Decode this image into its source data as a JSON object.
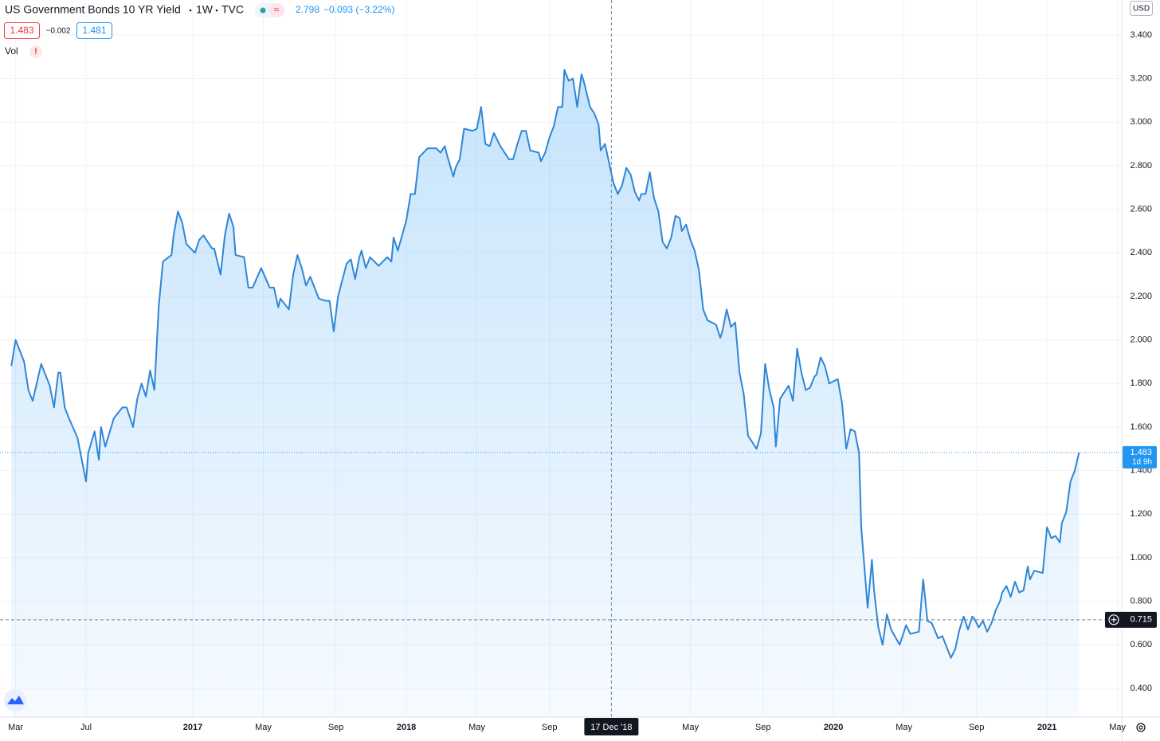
{
  "chart_data": {
    "type": "area",
    "title": "US Government Bonds 10 YR Yield",
    "interval": "1W",
    "exchange": "TVC",
    "header_value": "2.798",
    "header_change": "−0.093 (−3.22%)",
    "bid": "1.483",
    "spread": "−0.002",
    "ask": "1.481",
    "indicator": "Vol",
    "indicator_alert": "!",
    "currency": "USD",
    "color": "#2f86d6",
    "x": [
      2016.15,
      2016.17,
      2016.21,
      2016.23,
      2016.25,
      2016.29,
      2016.33,
      2016.35,
      2016.37,
      2016.38,
      2016.4,
      2016.42,
      2016.46,
      2016.5,
      2016.51,
      2016.54,
      2016.56,
      2016.57,
      2016.59,
      2016.63,
      2016.67,
      2016.69,
      2016.72,
      2016.74,
      2016.76,
      2016.78,
      2016.8,
      2016.82,
      2016.84,
      2016.86,
      2016.9,
      2016.91,
      2016.93,
      2016.95,
      2016.97,
      2017.01,
      2017.03,
      2017.05,
      2017.09,
      2017.1,
      2017.13,
      2017.15,
      2017.17,
      2017.19,
      2017.2,
      2017.24,
      2017.26,
      2017.28,
      2017.32,
      2017.36,
      2017.38,
      2017.4,
      2017.41,
      2017.45,
      2017.47,
      2017.49,
      2017.51,
      2017.53,
      2017.55,
      2017.59,
      2017.62,
      2017.64,
      2017.66,
      2017.68,
      2017.72,
      2017.74,
      2017.76,
      2017.78,
      2017.79,
      2017.81,
      2017.83,
      2017.87,
      2017.91,
      2017.93,
      2017.94,
      2017.96,
      2017.98,
      2018.0,
      2018.02,
      2018.04,
      2018.06,
      2018.1,
      2018.14,
      2018.16,
      2018.18,
      2018.19,
      2018.22,
      2018.23,
      2018.25,
      2018.27,
      2018.31,
      2018.33,
      2018.35,
      2018.37,
      2018.39,
      2018.41,
      2018.44,
      2018.48,
      2018.5,
      2018.52,
      2018.54,
      2018.56,
      2018.58,
      2018.62,
      2018.63,
      2018.65,
      2018.67,
      2018.69,
      2018.71,
      2018.73,
      2018.74,
      2018.76,
      2018.78,
      2018.8,
      2018.82,
      2018.83,
      2018.86,
      2018.88,
      2018.9,
      2018.91,
      2018.93,
      2018.95,
      2018.97,
      2018.99,
      2019.01,
      2019.03,
      2019.05,
      2019.07,
      2019.09,
      2019.1,
      2019.12,
      2019.14,
      2019.16,
      2019.18,
      2019.2,
      2019.22,
      2019.24,
      2019.26,
      2019.28,
      2019.29,
      2019.31,
      2019.33,
      2019.35,
      2019.37,
      2019.39,
      2019.41,
      2019.45,
      2019.47,
      2019.48,
      2019.5,
      2019.52,
      2019.54,
      2019.56,
      2019.58,
      2019.6,
      2019.62,
      2019.64,
      2019.66,
      2019.68,
      2019.7,
      2019.72,
      2019.73,
      2019.75,
      2019.79,
      2019.81,
      2019.83,
      2019.85,
      2019.87,
      2019.89,
      2019.91,
      2019.92,
      2019.94,
      2019.96,
      2019.98,
      2020.02,
      2020.04,
      2020.06,
      2020.08,
      2020.1,
      2020.12,
      2020.13,
      2020.16,
      2020.18,
      2020.19,
      2020.21,
      2020.23,
      2020.25,
      2020.27,
      2020.31,
      2020.32,
      2020.34,
      2020.36,
      2020.4,
      2020.42,
      2020.44,
      2020.46,
      2020.49,
      2020.51,
      2020.53,
      2020.55,
      2020.57,
      2020.59,
      2020.61,
      2020.63,
      2020.65,
      2020.66,
      2020.68,
      2020.7,
      2020.72,
      2020.74,
      2020.76,
      2020.78,
      2020.79,
      2020.81,
      2020.83,
      2020.85,
      2020.87,
      2020.89,
      2020.91,
      2020.92,
      2020.94,
      2020.98,
      2021.0,
      2021.02,
      2021.04,
      2021.06,
      2021.07,
      2021.09,
      2021.11,
      2021.13,
      2021.15
    ],
    "values": [
      1.88,
      2.0,
      1.9,
      1.77,
      1.72,
      1.89,
      1.79,
      1.69,
      1.85,
      1.85,
      1.69,
      1.64,
      1.55,
      1.35,
      1.48,
      1.58,
      1.45,
      1.6,
      1.51,
      1.64,
      1.69,
      1.69,
      1.6,
      1.73,
      1.8,
      1.74,
      1.86,
      1.77,
      2.15,
      2.36,
      2.39,
      2.48,
      2.59,
      2.54,
      2.44,
      2.4,
      2.46,
      2.48,
      2.42,
      2.42,
      2.3,
      2.48,
      2.58,
      2.52,
      2.39,
      2.38,
      2.24,
      2.24,
      2.33,
      2.24,
      2.24,
      2.15,
      2.19,
      2.14,
      2.3,
      2.39,
      2.33,
      2.25,
      2.29,
      2.19,
      2.18,
      2.18,
      2.04,
      2.2,
      2.35,
      2.37,
      2.28,
      2.38,
      2.41,
      2.33,
      2.38,
      2.34,
      2.38,
      2.36,
      2.47,
      2.41,
      2.48,
      2.55,
      2.67,
      2.67,
      2.84,
      2.88,
      2.88,
      2.86,
      2.89,
      2.85,
      2.75,
      2.79,
      2.83,
      2.97,
      2.96,
      2.97,
      3.07,
      2.9,
      2.89,
      2.95,
      2.89,
      2.83,
      2.83,
      2.9,
      2.96,
      2.96,
      2.87,
      2.86,
      2.82,
      2.86,
      2.93,
      2.98,
      3.07,
      3.07,
      3.24,
      3.19,
      3.2,
      3.07,
      3.22,
      3.19,
      3.07,
      3.04,
      2.99,
      2.87,
      2.9,
      2.81,
      2.72,
      2.67,
      2.71,
      2.79,
      2.76,
      2.68,
      2.64,
      2.67,
      2.67,
      2.77,
      2.65,
      2.59,
      2.45,
      2.42,
      2.47,
      2.57,
      2.56,
      2.5,
      2.53,
      2.46,
      2.41,
      2.32,
      2.14,
      2.09,
      2.07,
      2.01,
      2.04,
      2.14,
      2.06,
      2.08,
      1.85,
      1.75,
      1.56,
      1.53,
      1.5,
      1.57,
      1.89,
      1.77,
      1.69,
      1.51,
      1.73,
      1.79,
      1.72,
      1.96,
      1.85,
      1.77,
      1.78,
      1.83,
      1.84,
      1.92,
      1.88,
      1.8,
      1.82,
      1.71,
      1.5,
      1.59,
      1.58,
      1.48,
      1.14,
      0.77,
      0.99,
      0.85,
      0.68,
      0.6,
      0.74,
      0.67,
      0.6,
      0.63,
      0.69,
      0.65,
      0.66,
      0.9,
      0.71,
      0.7,
      0.63,
      0.64,
      0.59,
      0.54,
      0.58,
      0.67,
      0.73,
      0.67,
      0.73,
      0.72,
      0.68,
      0.71,
      0.66,
      0.7,
      0.76,
      0.8,
      0.84,
      0.87,
      0.82,
      0.89,
      0.84,
      0.85,
      0.96,
      0.9,
      0.94,
      0.93,
      1.14,
      1.09,
      1.1,
      1.07,
      1.16,
      1.21,
      1.35,
      1.4,
      1.483
    ],
    "xlim": [
      2016.097,
      2021.35
    ],
    "ylim": [
      0.268,
      3.561
    ],
    "xticks": [
      {
        "value": 2016.17,
        "label": "Mar"
      },
      {
        "value": 2016.5,
        "label": "Jul"
      },
      {
        "value": 2017,
        "label": "2017"
      },
      {
        "value": 2017.33,
        "label": "May"
      },
      {
        "value": 2017.67,
        "label": "Sep"
      },
      {
        "value": 2018,
        "label": "2018"
      },
      {
        "value": 2018.33,
        "label": "May"
      },
      {
        "value": 2018.67,
        "label": "Sep"
      },
      {
        "value": 2019.33,
        "label": "May"
      },
      {
        "value": 2019.67,
        "label": "Sep"
      },
      {
        "value": 2020,
        "label": "2020"
      },
      {
        "value": 2020.33,
        "label": "May"
      },
      {
        "value": 2020.67,
        "label": "Sep"
      },
      {
        "value": 2021,
        "label": "2021"
      },
      {
        "value": 2021.33,
        "label": "May"
      }
    ],
    "yticks": [
      {
        "value": 0.4,
        "label": "0.400"
      },
      {
        "value": 0.6,
        "label": "0.600"
      },
      {
        "value": 0.8,
        "label": "0.800"
      },
      {
        "value": 1.0,
        "label": "1.000"
      },
      {
        "value": 1.2,
        "label": "1.200"
      },
      {
        "value": 1.4,
        "label": "1.400"
      },
      {
        "value": 1.6,
        "label": "1.600"
      },
      {
        "value": 1.8,
        "label": "1.800"
      },
      {
        "value": 2.0,
        "label": "2.000"
      },
      {
        "value": 2.2,
        "label": "2.200"
      },
      {
        "value": 2.4,
        "label": "2.400"
      },
      {
        "value": 2.6,
        "label": "2.600"
      },
      {
        "value": 2.8,
        "label": "2.800"
      },
      {
        "value": 3.0,
        "label": "3.000"
      },
      {
        "value": 3.2,
        "label": "3.200"
      },
      {
        "value": 3.4,
        "label": "3.400"
      }
    ],
    "grid": true,
    "last_price": 1.483,
    "countdown": "1d 9h",
    "last_price_color": "#2196f3",
    "crosshair_x": {
      "value": 2018.96,
      "label": "17 Dec '18"
    },
    "crosshair_y": {
      "value": 0.715,
      "label": "0.715"
    }
  }
}
